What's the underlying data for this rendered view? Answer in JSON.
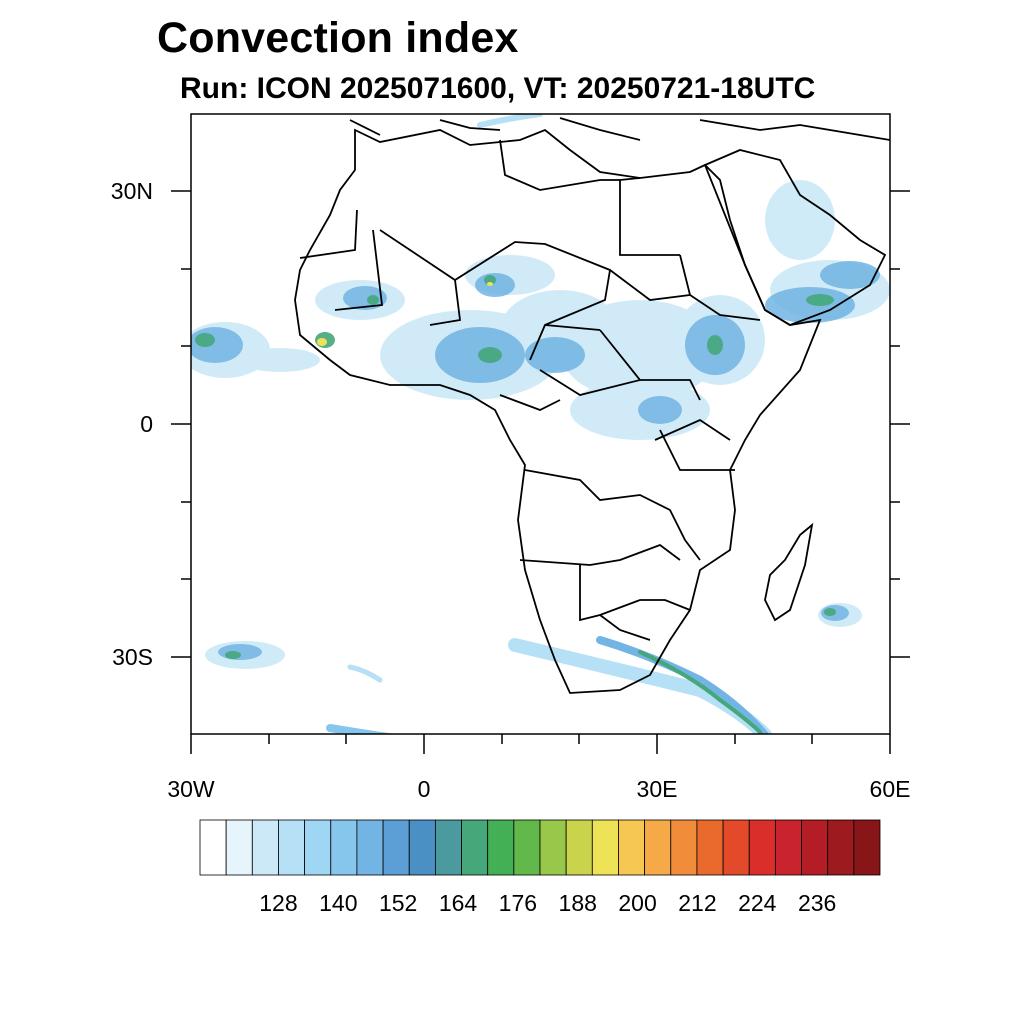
{
  "title": "Convection index",
  "subtitle": "Run: ICON 2025071600,  VT: 20250721-18UTC",
  "map": {
    "region": "Africa",
    "lon_range": [
      -30,
      60
    ],
    "lat_range": [
      -40,
      40
    ],
    "lat_ticks": [
      {
        "value": 30,
        "label": "30N"
      },
      {
        "value": 0,
        "label": "0"
      },
      {
        "value": -30,
        "label": "30S"
      }
    ],
    "lon_ticks": [
      {
        "value": -30,
        "label": "30W"
      },
      {
        "value": 0,
        "label": "0"
      },
      {
        "value": 30,
        "label": "30E"
      },
      {
        "value": 60,
        "label": "60E"
      }
    ]
  },
  "colorbar": {
    "colors": [
      "#ffffff",
      "#e6f4fb",
      "#cbe9f7",
      "#b5e0f5",
      "#9fd6f3",
      "#86c6ec",
      "#72b4e3",
      "#5b9fd6",
      "#4a90c4",
      "#4a9aa0",
      "#45a77a",
      "#44b056",
      "#62b84b",
      "#98c84a",
      "#c9d34c",
      "#eee257",
      "#f6c752",
      "#f5a947",
      "#f08c3a",
      "#ea6a2e",
      "#e34a2a",
      "#da2e2b",
      "#c9232d",
      "#b41c26",
      "#9d1a1e",
      "#881518"
    ],
    "tick_labels": [
      "128",
      "140",
      "152",
      "164",
      "176",
      "188",
      "200",
      "212",
      "224",
      "236"
    ]
  }
}
